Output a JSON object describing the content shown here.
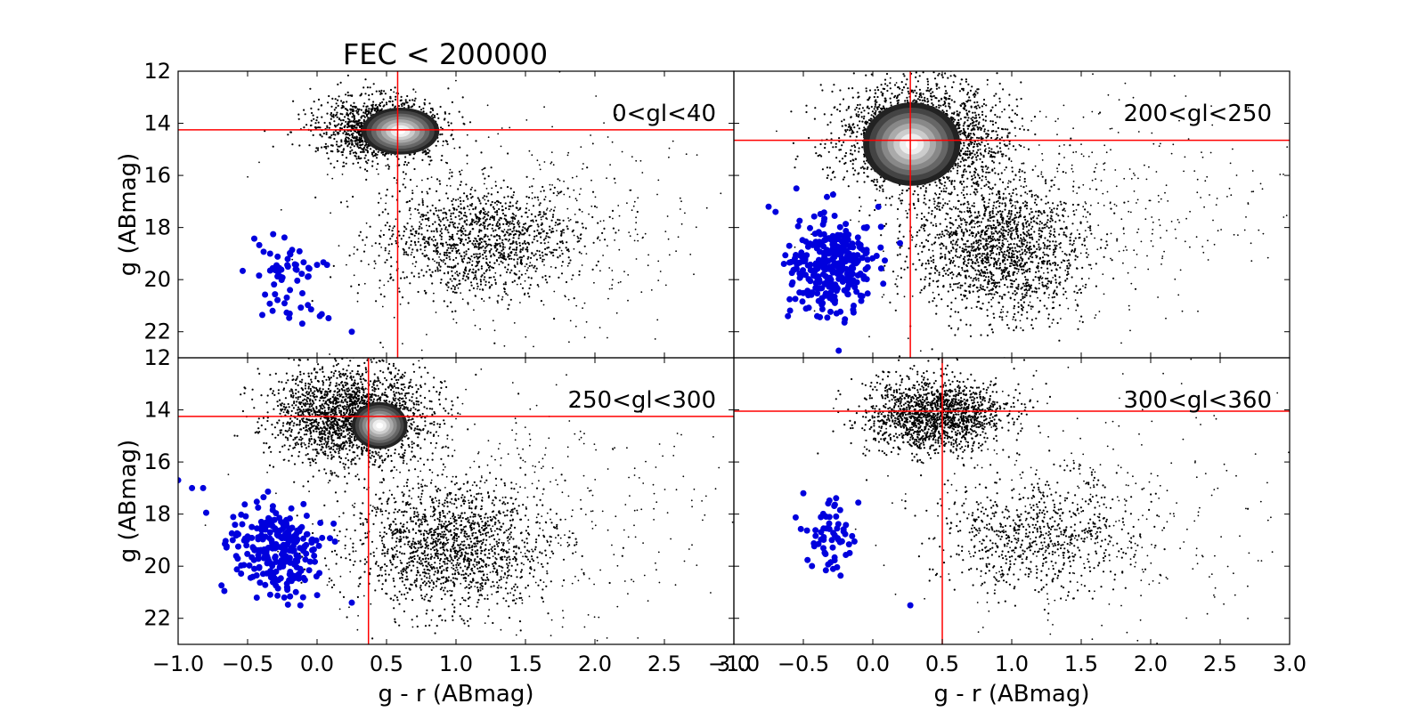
{
  "chart_data": {
    "type": "scatter",
    "title": "FEC < 200000",
    "xlabel": "g - r (ABmag)",
    "ylabel": "g (ABmag)",
    "xlim": [
      -1.0,
      3.0
    ],
    "ylim": [
      23,
      12
    ],
    "y_inverted": true,
    "x_ticks": [
      "-1.0",
      "-0.5",
      "0.0",
      "0.5",
      "1.0",
      "1.5",
      "2.0",
      "2.5",
      "3.0"
    ],
    "y_ticks": [
      "12",
      "14",
      "16",
      "18",
      "20",
      "22"
    ],
    "grid": false,
    "colors": {
      "background_points": "#000000",
      "highlight_points": "#0000dd",
      "reference_lines": "#ff0000",
      "density_core": "#ffffff"
    },
    "series_note": "black = field stars (density-contoured core), blue = selected objects, red = reference lines",
    "panels": [
      {
        "label": "0<gl<40",
        "vline_x": 0.58,
        "hline_y": 14.25,
        "clusters": [
          {
            "kind": "field",
            "cx": 0.45,
            "cy": 14.2,
            "sx": 0.22,
            "sy": 0.6,
            "n": 1400
          },
          {
            "kind": "field",
            "cx": 1.15,
            "cy": 18.5,
            "sx": 0.35,
            "sy": 1.1,
            "n": 1200
          },
          {
            "kind": "field",
            "cx": 1.5,
            "cy": 18.0,
            "sx": 0.7,
            "sy": 2.2,
            "n": 450
          }
        ],
        "density_core": {
          "cx": 0.6,
          "cy": 14.3,
          "rx": 0.28,
          "ry": 0.9
        },
        "selected": {
          "cx": -0.2,
          "cy": 19.8,
          "sx": 0.12,
          "sy": 0.8,
          "n": 60
        },
        "selected_extra": [
          [
            0.25,
            22.0
          ],
          [
            -0.32,
            21.2
          ],
          [
            0.02,
            21.4
          ]
        ]
      },
      {
        "label": "200<gl<250",
        "vline_x": 0.27,
        "hline_y": 14.65,
        "clusters": [
          {
            "kind": "field",
            "cx": 0.35,
            "cy": 14.5,
            "sx": 0.3,
            "sy": 1.0,
            "n": 2200
          },
          {
            "kind": "field",
            "cx": 0.9,
            "cy": 18.8,
            "sx": 0.3,
            "sy": 1.3,
            "n": 1600
          },
          {
            "kind": "field",
            "cx": 1.4,
            "cy": 17.5,
            "sx": 0.75,
            "sy": 2.4,
            "n": 500
          }
        ],
        "density_core": {
          "cx": 0.28,
          "cy": 14.8,
          "rx": 0.35,
          "ry": 1.6
        },
        "selected": {
          "cx": -0.3,
          "cy": 19.5,
          "sx": 0.15,
          "sy": 0.9,
          "n": 330
        },
        "selected_extra": [
          [
            -0.75,
            17.2
          ],
          [
            -0.55,
            16.5
          ],
          [
            -0.7,
            17.4
          ]
        ]
      },
      {
        "label": "250<gl<300",
        "vline_x": 0.37,
        "hline_y": 14.25,
        "clusters": [
          {
            "kind": "field",
            "cx": 0.25,
            "cy": 14.2,
            "sx": 0.28,
            "sy": 0.9,
            "n": 2200
          },
          {
            "kind": "field",
            "cx": 0.95,
            "cy": 19.2,
            "sx": 0.35,
            "sy": 1.2,
            "n": 1500
          },
          {
            "kind": "field",
            "cx": 1.4,
            "cy": 18.0,
            "sx": 0.75,
            "sy": 2.3,
            "n": 450
          }
        ],
        "density_core": {
          "cx": 0.45,
          "cy": 14.6,
          "rx": 0.2,
          "ry": 0.9
        },
        "selected": {
          "cx": -0.3,
          "cy": 19.3,
          "sx": 0.15,
          "sy": 0.9,
          "n": 260
        },
        "selected_extra": [
          [
            -1.0,
            16.7
          ],
          [
            -0.9,
            17.0
          ],
          [
            -0.82,
            17.0
          ],
          [
            0.25,
            21.4
          ],
          [
            -0.12,
            21.5
          ]
        ]
      },
      {
        "label": "300<gl<360",
        "vline_x": 0.5,
        "hline_y": 14.05,
        "clusters": [
          {
            "kind": "field",
            "cx": 0.45,
            "cy": 14.2,
            "sx": 0.25,
            "sy": 0.7,
            "n": 1600
          },
          {
            "kind": "field",
            "cx": 1.2,
            "cy": 18.8,
            "sx": 0.35,
            "sy": 1.1,
            "n": 700
          },
          {
            "kind": "field",
            "cx": 1.5,
            "cy": 18.0,
            "sx": 0.75,
            "sy": 2.3,
            "n": 350
          }
        ],
        "density_core": null,
        "selected": {
          "cx": -0.3,
          "cy": 19.0,
          "sx": 0.1,
          "sy": 0.8,
          "n": 60
        },
        "selected_extra": [
          [
            0.27,
            21.5
          ],
          [
            -0.5,
            17.2
          ]
        ]
      }
    ]
  }
}
